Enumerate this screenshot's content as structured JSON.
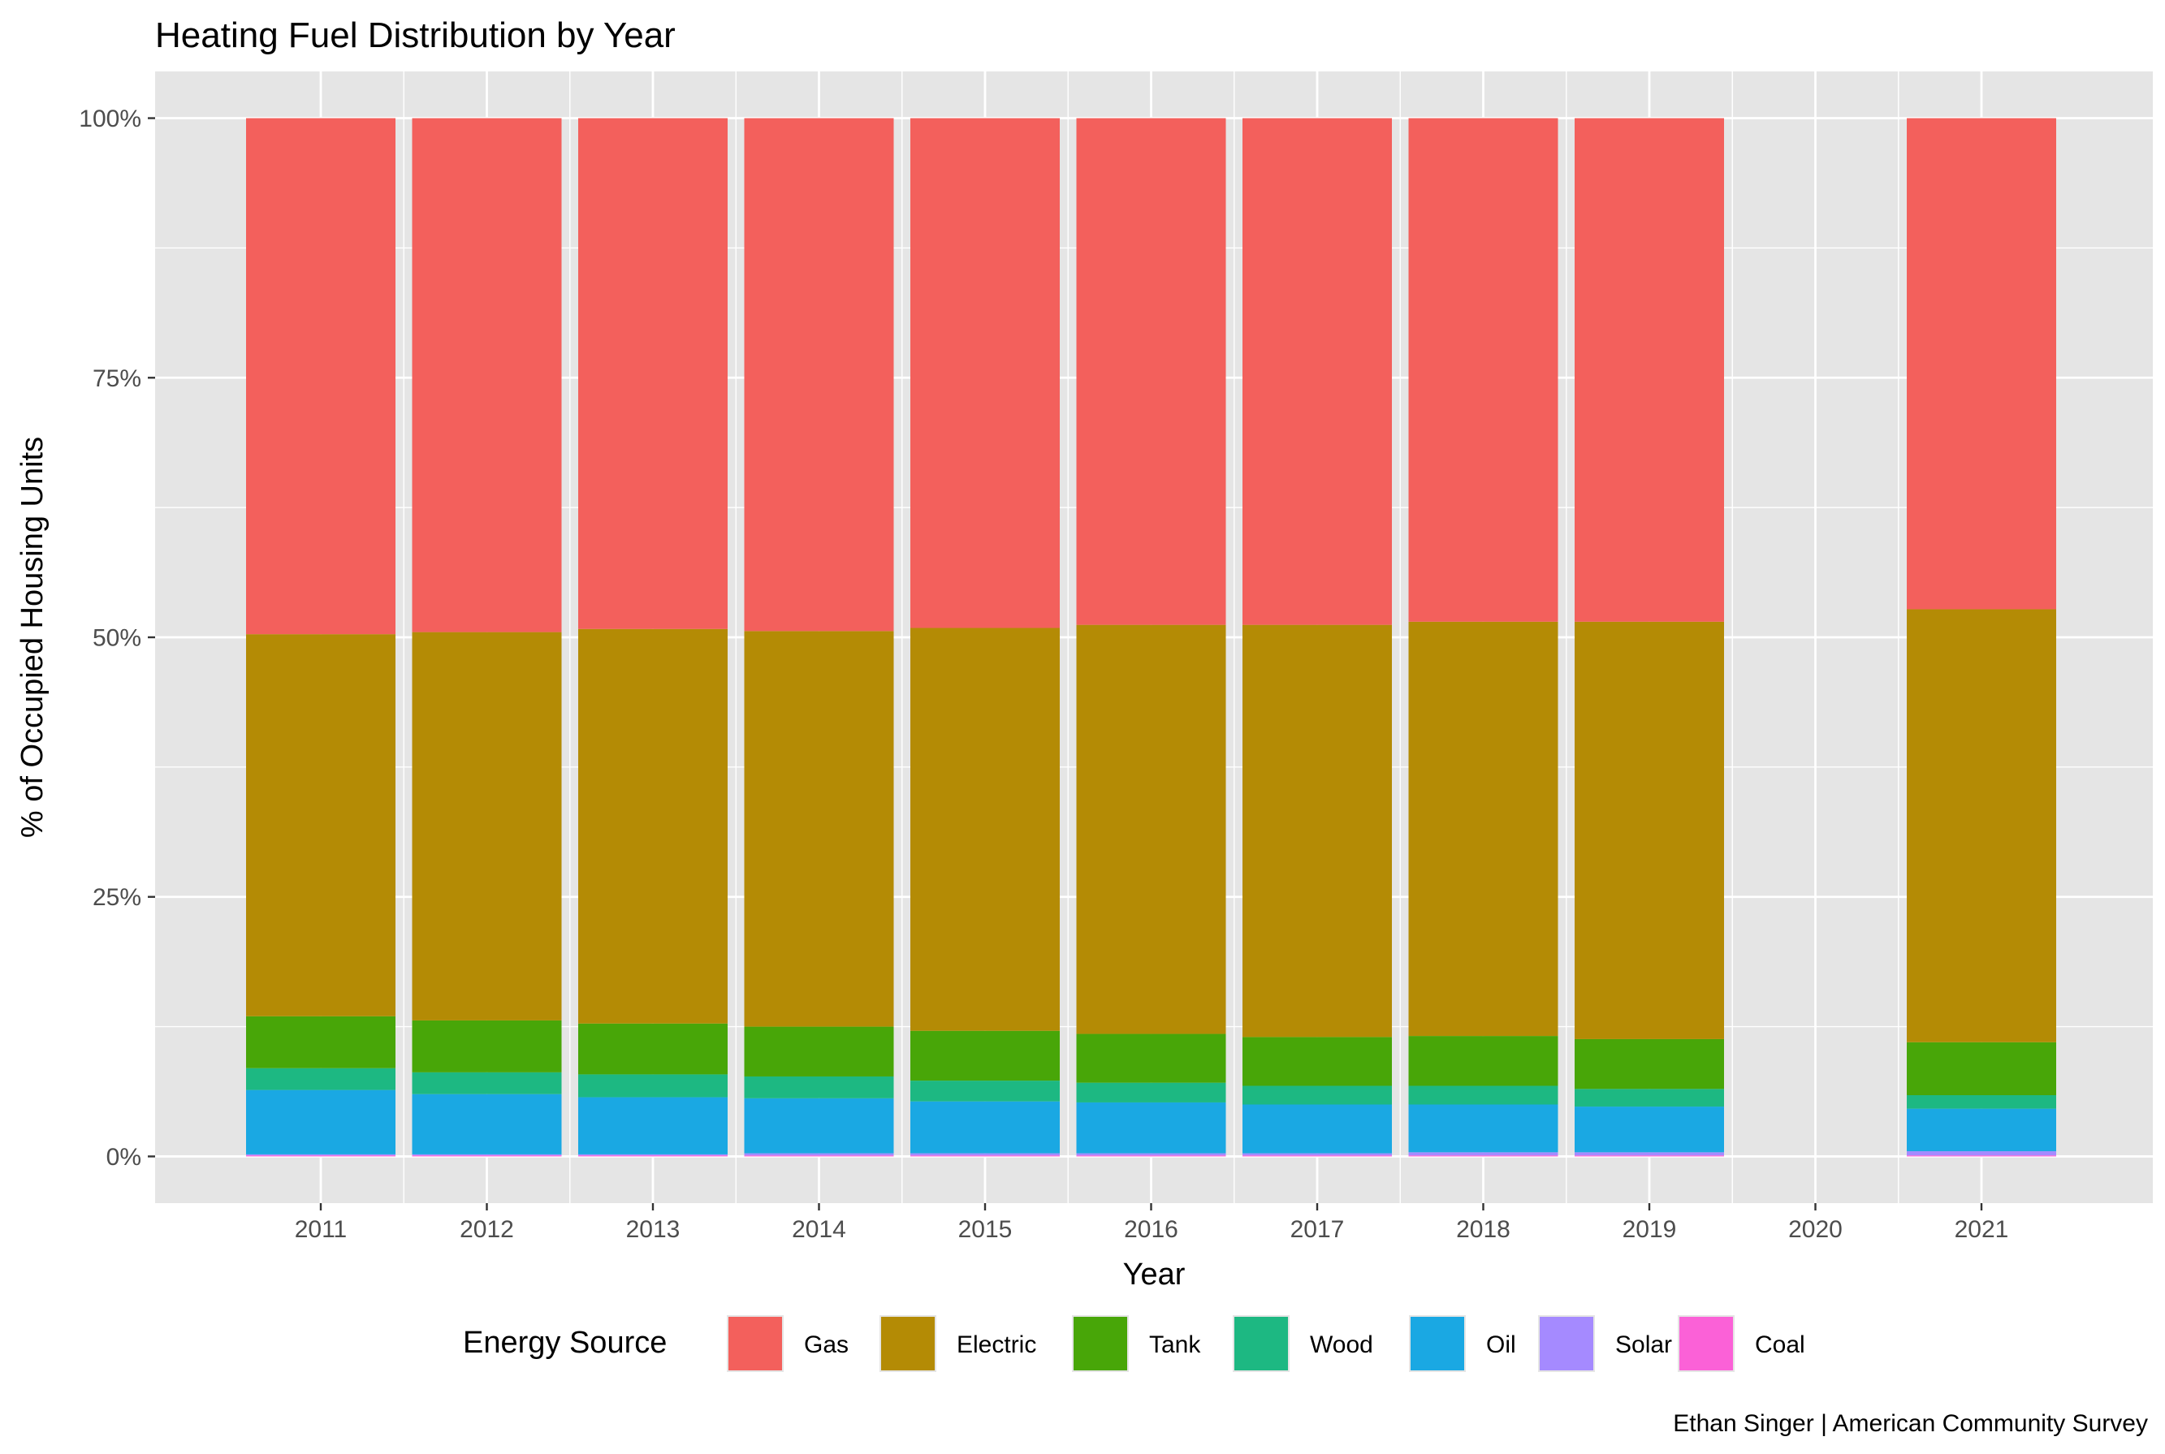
{
  "colors": {
    "panel_bg": "#e5e5e5",
    "grid": "#ffffff",
    "tick": "#333333"
  },
  "chart_data": {
    "type": "bar",
    "stacked": true,
    "title": "Heating Fuel Distribution by Year",
    "xlabel": "Year",
    "ylabel": "% of Occupied Housing Units",
    "caption": "Ethan Singer | American Community Survey",
    "categories": [
      "2011",
      "2012",
      "2013",
      "2014",
      "2015",
      "2016",
      "2017",
      "2018",
      "2019",
      "2020",
      "2021"
    ],
    "y_ticks": [
      {
        "value": 0,
        "label": "0%"
      },
      {
        "value": 25,
        "label": "25%"
      },
      {
        "value": 50,
        "label": "50%"
      },
      {
        "value": 75,
        "label": "75%"
      },
      {
        "value": 100,
        "label": "100%"
      }
    ],
    "ylim": [
      -4.5,
      104.5
    ],
    "grid": true,
    "legend": {
      "title": "Energy Source",
      "position": "bottom",
      "order": [
        "Gas",
        "Electric",
        "Tank",
        "Wood",
        "Oil",
        "Solar",
        "Coal"
      ]
    },
    "series": [
      {
        "name": "Coal",
        "color": "#FB61D7",
        "values": [
          0.1,
          0.1,
          0.1,
          0.1,
          0.1,
          0.1,
          0.1,
          0.1,
          0.1,
          null,
          0.1
        ]
      },
      {
        "name": "Solar",
        "color": "#A58AFF",
        "values": [
          0.1,
          0.1,
          0.1,
          0.2,
          0.2,
          0.2,
          0.2,
          0.3,
          0.3,
          null,
          0.4
        ]
      },
      {
        "name": "Oil",
        "color": "#1AA8E3",
        "values": [
          6.2,
          5.8,
          5.5,
          5.3,
          5.0,
          4.9,
          4.7,
          4.6,
          4.4,
          null,
          4.1
        ]
      },
      {
        "name": "Wood",
        "color": "#1DB882",
        "values": [
          2.1,
          2.1,
          2.2,
          2.1,
          2.0,
          1.9,
          1.8,
          1.8,
          1.7,
          null,
          1.3
        ]
      },
      {
        "name": "Tank",
        "color": "#48A608",
        "values": [
          5.0,
          5.0,
          4.9,
          4.8,
          4.8,
          4.7,
          4.7,
          4.8,
          4.8,
          null,
          5.1
        ]
      },
      {
        "name": "Electric",
        "color": "#B48B05",
        "values": [
          36.8,
          37.4,
          38.0,
          38.1,
          38.8,
          39.4,
          39.7,
          39.9,
          40.2,
          null,
          41.7
        ]
      },
      {
        "name": "Gas",
        "color": "#F3605C",
        "values": [
          49.7,
          49.5,
          49.2,
          49.4,
          49.1,
          48.8,
          48.8,
          48.5,
          48.5,
          null,
          47.3
        ]
      }
    ]
  }
}
